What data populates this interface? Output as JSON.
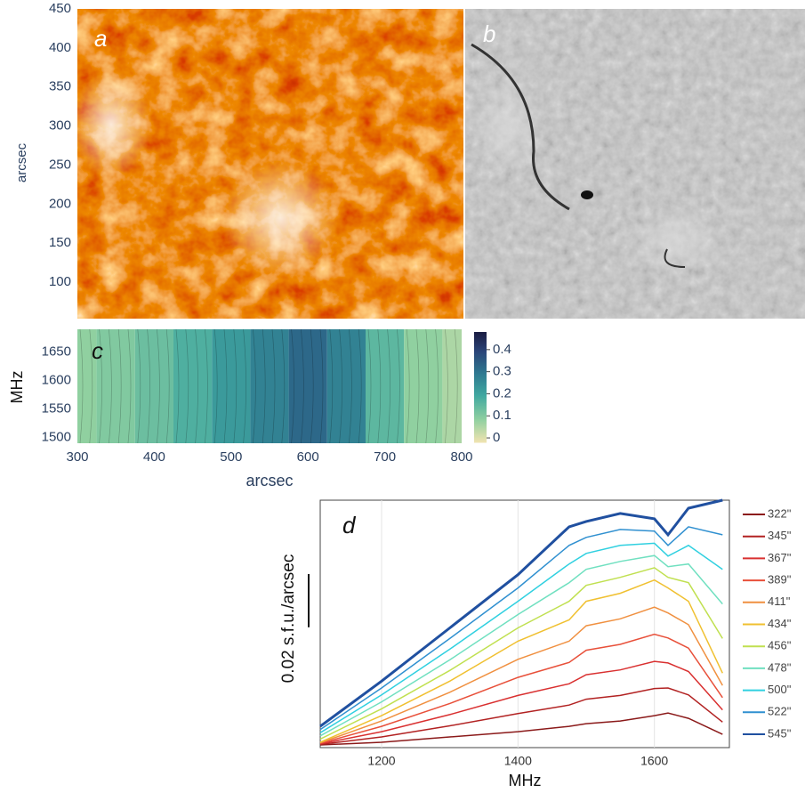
{
  "chart_data": [
    {
      "type": "image",
      "label": "a",
      "ylabel": "arcsec",
      "ylim": [
        50,
        450
      ],
      "yticks": [
        100,
        150,
        200,
        250,
        300,
        350,
        400,
        450
      ]
    },
    {
      "type": "image",
      "label": "b"
    },
    {
      "type": "heatmap",
      "label": "c",
      "ylabel": "MHz",
      "xlabel": "arcsec",
      "xlim": [
        300,
        800
      ],
      "xticks": [
        300,
        400,
        500,
        600,
        700,
        800
      ],
      "ylim": [
        1490,
        1690
      ],
      "yticks": [
        1500,
        1550,
        1600,
        1650
      ],
      "x": [
        300,
        350,
        400,
        450,
        500,
        550,
        600,
        650,
        700,
        750,
        800
      ],
      "values": [
        0.08,
        0.1,
        0.13,
        0.17,
        0.22,
        0.27,
        0.32,
        0.27,
        0.15,
        0.08,
        0.05
      ],
      "colorbar_lim": [
        -0.02,
        0.48
      ],
      "colorbar_ticks": [
        0,
        0.1,
        0.2,
        0.3,
        0.4
      ]
    },
    {
      "type": "line",
      "label": "d",
      "xlabel": "MHz",
      "ylabel": "0.02 s.f.u./arcsec",
      "scale_bar": 0.02,
      "xlim": [
        1110,
        1710
      ],
      "xticks": [
        1200,
        1400,
        1600
      ],
      "ylim": [
        0,
        0.093
      ],
      "grid": true,
      "x": [
        1110,
        1200,
        1300,
        1400,
        1475,
        1500,
        1550,
        1600,
        1620,
        1650,
        1700
      ],
      "series": [
        {
          "name": "322\"",
          "color": "#8b1a1a",
          "values": [
            0.001,
            0.002,
            0.004,
            0.006,
            0.008,
            0.009,
            0.01,
            0.012,
            0.013,
            0.011,
            0.005
          ]
        },
        {
          "name": "345\"",
          "color": "#b22222",
          "values": [
            0.0012,
            0.004,
            0.0082,
            0.0128,
            0.016,
            0.0182,
            0.0196,
            0.0222,
            0.0224,
            0.0198,
            0.0096
          ]
        },
        {
          "name": "367\"",
          "color": "#d93030",
          "values": [
            0.0014,
            0.006,
            0.0124,
            0.0196,
            0.024,
            0.0274,
            0.0292,
            0.0324,
            0.0318,
            0.0286,
            0.0142
          ]
        },
        {
          "name": "389\"",
          "color": "#e8503a",
          "values": [
            0.0016,
            0.008,
            0.0166,
            0.0264,
            0.032,
            0.0366,
            0.0388,
            0.0426,
            0.0412,
            0.0374,
            0.0188
          ]
        },
        {
          "name": "411\"",
          "color": "#f09040",
          "values": [
            0.0018,
            0.01,
            0.0208,
            0.0332,
            0.04,
            0.0458,
            0.0484,
            0.0528,
            0.0506,
            0.0462,
            0.0234
          ]
        },
        {
          "name": "434\"",
          "color": "#f0c030",
          "values": [
            0.002,
            0.012,
            0.025,
            0.04,
            0.048,
            0.055,
            0.058,
            0.063,
            0.06,
            0.055,
            0.028
          ]
        },
        {
          "name": "456\"",
          "color": "#c0e050",
          "values": [
            0.0032,
            0.0146,
            0.029,
            0.045,
            0.055,
            0.061,
            0.064,
            0.0676,
            0.064,
            0.062,
            0.041
          ]
        },
        {
          "name": "478\"",
          "color": "#70e0c0",
          "values": [
            0.0044,
            0.0172,
            0.033,
            0.05,
            0.062,
            0.067,
            0.07,
            0.0722,
            0.068,
            0.069,
            0.054
          ]
        },
        {
          "name": "500\"",
          "color": "#30d0e0",
          "values": [
            0.0056,
            0.0198,
            0.037,
            0.055,
            0.069,
            0.073,
            0.076,
            0.0768,
            0.072,
            0.076,
            0.067
          ]
        },
        {
          "name": "522\"",
          "color": "#3090d0",
          "values": [
            0.0068,
            0.0224,
            0.041,
            0.06,
            0.076,
            0.079,
            0.082,
            0.0814,
            0.076,
            0.083,
            0.08
          ]
        },
        {
          "name": "545\"",
          "color": "#2050a0",
          "values": [
            0.008,
            0.025,
            0.045,
            0.065,
            0.083,
            0.085,
            0.088,
            0.086,
            0.08,
            0.09,
            0.093
          ]
        }
      ]
    }
  ]
}
